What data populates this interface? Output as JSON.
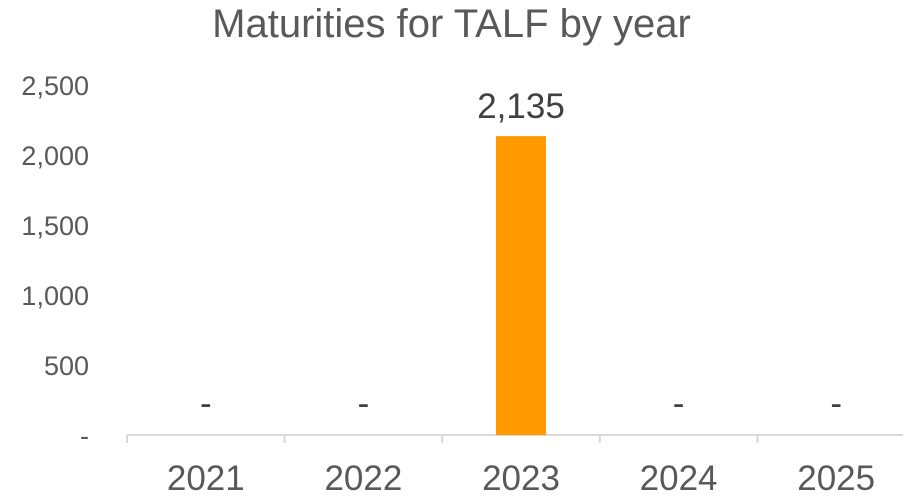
{
  "chart_data": {
    "type": "bar",
    "title": "Maturities for TALF by year",
    "xlabel": "",
    "ylabel": "",
    "categories": [
      "2021",
      "2022",
      "2023",
      "2024",
      "2025"
    ],
    "values": [
      0,
      0,
      2135,
      0,
      0
    ],
    "data_labels": [
      "-",
      "-",
      "2,135",
      "-",
      "-"
    ],
    "y_ticks": [
      0,
      500,
      1000,
      1500,
      2000,
      2500
    ],
    "y_tick_labels": [
      "-",
      "500",
      "1,000",
      "1,500",
      "2,000",
      "2,500"
    ],
    "ylim": [
      0,
      2500
    ],
    "grid": false,
    "legend": "none",
    "bar_color": "#FF9900"
  }
}
